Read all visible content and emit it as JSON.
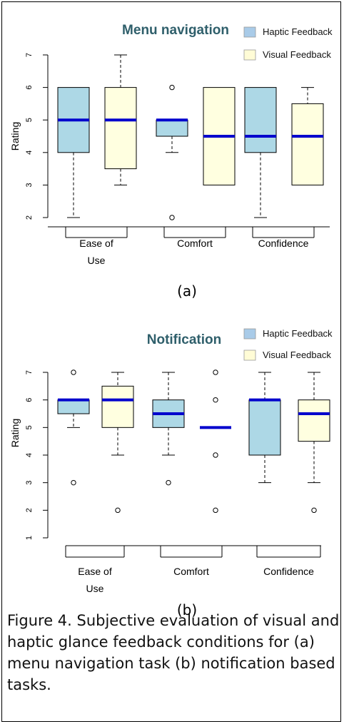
{
  "figure": {
    "caption": "Figure 4. Subjective evaluation of visual and haptic glance feedback conditions for (a) menu navigation task (b) notification based tasks."
  },
  "colors": {
    "haptic_fill": "#add8e6",
    "visual_fill": "#ffffe0",
    "median": "#0000cd",
    "title": "#2f5f6b",
    "legend_haptic": "#a9cbe8",
    "legend_visual": "#fffcd6"
  },
  "chart_data": [
    {
      "type": "boxplot",
      "title": "Menu navigation",
      "ylabel": "Rating",
      "panel_label": "(a)",
      "ylim": [
        2,
        7
      ],
      "yticks": [
        "2",
        "3",
        "4",
        "5",
        "6",
        "7"
      ],
      "legend": [
        "Haptic Feedback",
        "Visual Feedback"
      ],
      "groups": [
        {
          "label_lines": [
            "Ease of",
            "Use"
          ]
        },
        {
          "label_lines": [
            "Comfort"
          ]
        },
        {
          "label_lines": [
            "Confidence"
          ]
        }
      ],
      "boxes": [
        {
          "group": "Ease of Use",
          "series": "Haptic Feedback",
          "min": 2,
          "q1": 4,
          "median": 5,
          "q3": 6,
          "max": 6,
          "outliers": []
        },
        {
          "group": "Ease of Use",
          "series": "Visual Feedback",
          "min": 3,
          "q1": 3.5,
          "median": 5,
          "q3": 6,
          "max": 7,
          "outliers": []
        },
        {
          "group": "Comfort",
          "series": "Haptic Feedback",
          "min": 4,
          "q1": 4.5,
          "median": 5,
          "q3": 5,
          "max": 5,
          "outliers": [
            6,
            2
          ]
        },
        {
          "group": "Comfort",
          "series": "Visual Feedback",
          "min": 3,
          "q1": 3,
          "median": 4.5,
          "q3": 6,
          "max": 6,
          "outliers": []
        },
        {
          "group": "Confidence",
          "series": "Haptic Feedback",
          "min": 2,
          "q1": 4,
          "median": 4.5,
          "q3": 6,
          "max": 6,
          "outliers": []
        },
        {
          "group": "Confidence",
          "series": "Visual Feedback",
          "min": 3,
          "q1": 3,
          "median": 4.5,
          "q3": 5.5,
          "max": 6,
          "outliers": []
        }
      ]
    },
    {
      "type": "boxplot",
      "title": "Notification",
      "ylabel": "Rating",
      "panel_label": "(b)",
      "ylim": [
        1,
        7
      ],
      "yticks": [
        "1",
        "2",
        "3",
        "4",
        "5",
        "6",
        "7"
      ],
      "legend": [
        "Haptic Feedback",
        "Visual Feedback"
      ],
      "groups": [
        {
          "label_lines": [
            "Ease of",
            "Use"
          ]
        },
        {
          "label_lines": [
            "Comfort"
          ]
        },
        {
          "label_lines": [
            "Confidence"
          ]
        }
      ],
      "boxes": [
        {
          "group": "Ease of Use",
          "series": "Haptic Feedback",
          "min": 5,
          "q1": 5.5,
          "median": 6,
          "q3": 6,
          "max": 6,
          "outliers": [
            7,
            3
          ]
        },
        {
          "group": "Ease of Use",
          "series": "Visual Feedback",
          "min": 4,
          "q1": 5,
          "median": 6,
          "q3": 6.5,
          "max": 7,
          "outliers": [
            2
          ]
        },
        {
          "group": "Comfort",
          "series": "Haptic Feedback",
          "min": 4,
          "q1": 5,
          "median": 5.5,
          "q3": 6,
          "max": 7,
          "outliers": [
            3
          ]
        },
        {
          "group": "Comfort",
          "series": "Visual Feedback",
          "min": 5,
          "q1": 5,
          "median": 5,
          "q3": 5,
          "max": 5,
          "outliers": [
            7,
            6,
            4,
            2
          ]
        },
        {
          "group": "Confidence",
          "series": "Haptic Feedback",
          "min": 3,
          "q1": 4,
          "median": 6,
          "q3": 6,
          "max": 7,
          "outliers": []
        },
        {
          "group": "Confidence",
          "series": "Visual Feedback",
          "min": 3,
          "q1": 4.5,
          "median": 5.5,
          "q3": 6,
          "max": 7,
          "outliers": [
            2
          ]
        }
      ]
    }
  ]
}
